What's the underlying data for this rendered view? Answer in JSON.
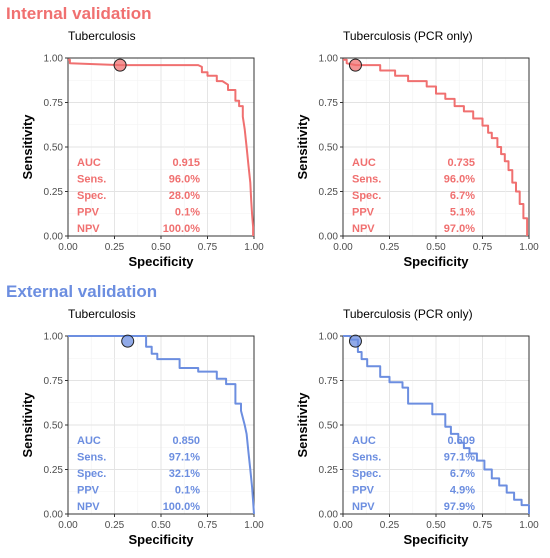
{
  "sections": [
    {
      "title": "Internal validation",
      "color": "#F07070"
    },
    {
      "title": "External validation",
      "color": "#6C8EE0"
    }
  ],
  "chart_data": [
    {
      "type": "line",
      "title": "Tuberculosis",
      "section": "Internal validation",
      "xlabel": "Specificity",
      "ylabel": "Sensitivity",
      "xlim": [
        0,
        1
      ],
      "ylim": [
        0,
        1
      ],
      "xticks": [
        "0.00",
        "0.25",
        "0.50",
        "0.75",
        "1.00"
      ],
      "yticks": [
        "0.00",
        "0.25",
        "0.50",
        "0.75",
        "1.00"
      ],
      "grid": true,
      "color": "#F07070",
      "x": [
        0,
        0.01,
        0.01,
        0.28,
        0.7,
        0.72,
        0.72,
        0.75,
        0.75,
        0.8,
        0.8,
        0.83,
        0.86,
        0.86,
        0.9,
        0.9,
        0.92,
        0.92,
        0.94,
        0.94,
        0.95,
        0.96,
        0.97,
        0.98,
        0.985,
        0.99,
        0.995,
        0.995
      ],
      "y": [
        0.99,
        0.99,
        0.97,
        0.96,
        0.96,
        0.95,
        0.92,
        0.92,
        0.9,
        0.9,
        0.87,
        0.87,
        0.85,
        0.82,
        0.82,
        0.76,
        0.76,
        0.73,
        0.73,
        0.67,
        0.6,
        0.5,
        0.4,
        0.3,
        0.2,
        0.12,
        0.05,
        0.0
      ],
      "operating_point": {
        "x": 0.28,
        "y": 0.96
      },
      "stats": [
        {
          "label": "AUC",
          "value": "0.915"
        },
        {
          "label": "Sens.",
          "value": "96.0%"
        },
        {
          "label": "Spec.",
          "value": "28.0%"
        },
        {
          "label": "PPV",
          "value": "0.1%"
        },
        {
          "label": "NPV",
          "value": "100.0%"
        }
      ]
    },
    {
      "type": "line",
      "title": "Tuberculosis (PCR only)",
      "section": "Internal validation",
      "xlabel": "Specificity",
      "ylabel": "Sensitivity",
      "xlim": [
        0,
        1
      ],
      "ylim": [
        0,
        1
      ],
      "xticks": [
        "0.00",
        "0.25",
        "0.50",
        "0.75",
        "1.00"
      ],
      "yticks": [
        "0.00",
        "0.25",
        "0.50",
        "0.75",
        "1.00"
      ],
      "grid": true,
      "color": "#F07070",
      "x": [
        0,
        0.02,
        0.02,
        0.07,
        0.2,
        0.2,
        0.28,
        0.28,
        0.35,
        0.35,
        0.45,
        0.45,
        0.5,
        0.5,
        0.55,
        0.55,
        0.6,
        0.6,
        0.65,
        0.65,
        0.7,
        0.7,
        0.75,
        0.75,
        0.78,
        0.78,
        0.8,
        0.8,
        0.83,
        0.83,
        0.85,
        0.85,
        0.87,
        0.87,
        0.89,
        0.89,
        0.91,
        0.91,
        0.93,
        0.93,
        0.95,
        0.95,
        0.97,
        0.97,
        0.99,
        0.99
      ],
      "y": [
        0.99,
        0.99,
        0.97,
        0.96,
        0.96,
        0.93,
        0.93,
        0.9,
        0.9,
        0.87,
        0.87,
        0.84,
        0.84,
        0.8,
        0.8,
        0.77,
        0.77,
        0.73,
        0.73,
        0.7,
        0.7,
        0.66,
        0.66,
        0.62,
        0.62,
        0.58,
        0.58,
        0.55,
        0.55,
        0.5,
        0.5,
        0.46,
        0.46,
        0.42,
        0.42,
        0.37,
        0.37,
        0.3,
        0.3,
        0.25,
        0.25,
        0.18,
        0.18,
        0.1,
        0.1,
        0.0
      ],
      "operating_point": {
        "x": 0.067,
        "y": 0.96
      },
      "stats": [
        {
          "label": "AUC",
          "value": "0.735"
        },
        {
          "label": "Sens.",
          "value": "96.0%"
        },
        {
          "label": "Spec.",
          "value": "6.7%"
        },
        {
          "label": "PPV",
          "value": "5.1%"
        },
        {
          "label": "NPV",
          "value": "97.0%"
        }
      ]
    },
    {
      "type": "line",
      "title": "Tuberculosis",
      "section": "External validation",
      "xlabel": "Specificity",
      "ylabel": "Sensitivity",
      "xlim": [
        0,
        1
      ],
      "ylim": [
        0,
        1
      ],
      "xticks": [
        "0.00",
        "0.25",
        "0.50",
        "0.75",
        "1.00"
      ],
      "yticks": [
        "0.00",
        "0.25",
        "0.50",
        "0.75",
        "1.00"
      ],
      "grid": true,
      "color": "#6C8EE0",
      "x": [
        0,
        0.32,
        0.42,
        0.42,
        0.45,
        0.45,
        0.48,
        0.48,
        0.6,
        0.6,
        0.7,
        0.7,
        0.8,
        0.8,
        0.85,
        0.85,
        0.9,
        0.9,
        0.93,
        0.93,
        0.95,
        0.96,
        0.97,
        0.98,
        0.99,
        1.0
      ],
      "y": [
        1.0,
        1.0,
        1.0,
        0.94,
        0.94,
        0.9,
        0.9,
        0.87,
        0.87,
        0.82,
        0.82,
        0.8,
        0.8,
        0.76,
        0.76,
        0.73,
        0.73,
        0.62,
        0.62,
        0.58,
        0.5,
        0.45,
        0.35,
        0.25,
        0.15,
        0.0
      ],
      "operating_point": {
        "x": 0.321,
        "y": 0.971
      },
      "stats": [
        {
          "label": "AUC",
          "value": "0.850"
        },
        {
          "label": "Sens.",
          "value": "97.1%"
        },
        {
          "label": "Spec.",
          "value": "32.1%"
        },
        {
          "label": "PPV",
          "value": "0.1%"
        },
        {
          "label": "NPV",
          "value": "100.0%"
        }
      ]
    },
    {
      "type": "line",
      "title": "Tuberculosis (PCR only)",
      "section": "External validation",
      "xlabel": "Specificity",
      "ylabel": "Sensitivity",
      "xlim": [
        0,
        1
      ],
      "ylim": [
        0,
        1
      ],
      "xticks": [
        "0.00",
        "0.25",
        "0.50",
        "0.75",
        "1.00"
      ],
      "yticks": [
        "0.00",
        "0.25",
        "0.50",
        "0.75",
        "1.00"
      ],
      "grid": true,
      "color": "#6C8EE0",
      "x": [
        0,
        0.04,
        0.04,
        0.08,
        0.08,
        0.1,
        0.1,
        0.13,
        0.13,
        0.2,
        0.2,
        0.25,
        0.25,
        0.32,
        0.32,
        0.35,
        0.35,
        0.48,
        0.48,
        0.55,
        0.55,
        0.58,
        0.58,
        0.62,
        0.62,
        0.65,
        0.65,
        0.68,
        0.68,
        0.72,
        0.72,
        0.76,
        0.76,
        0.8,
        0.8,
        0.84,
        0.84,
        0.88,
        0.88,
        0.92,
        0.92,
        0.96,
        0.96,
        1.0,
        1.0
      ],
      "y": [
        1.0,
        1.0,
        0.98,
        0.98,
        0.91,
        0.91,
        0.87,
        0.87,
        0.83,
        0.83,
        0.77,
        0.77,
        0.74,
        0.74,
        0.71,
        0.71,
        0.62,
        0.62,
        0.56,
        0.56,
        0.49,
        0.49,
        0.45,
        0.45,
        0.4,
        0.4,
        0.37,
        0.37,
        0.34,
        0.34,
        0.3,
        0.3,
        0.25,
        0.25,
        0.2,
        0.2,
        0.16,
        0.16,
        0.12,
        0.12,
        0.08,
        0.08,
        0.05,
        0.05,
        0.0
      ],
      "operating_point": {
        "x": 0.067,
        "y": 0.971
      },
      "stats": [
        {
          "label": "AUC",
          "value": "0.609"
        },
        {
          "label": "Sens.",
          "value": "97.1%"
        },
        {
          "label": "Spec.",
          "value": "6.7%"
        },
        {
          "label": "PPV",
          "value": "4.9%"
        },
        {
          "label": "NPV",
          "value": "97.9%"
        }
      ]
    }
  ]
}
